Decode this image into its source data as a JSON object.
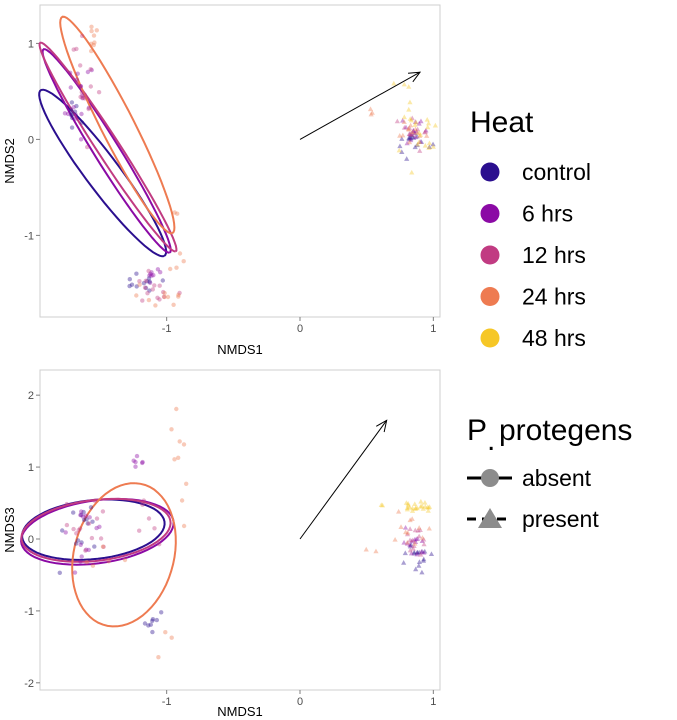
{
  "chart_data": [
    {
      "type": "scatter",
      "xlabel": "NMDS1",
      "ylabel": "NMDS2",
      "xlim": [
        -1.95,
        1.05
      ],
      "ylim": [
        -1.85,
        1.4
      ],
      "x_ticks": [
        "-1",
        "0",
        "1"
      ],
      "x_tick_values": [
        -1,
        0,
        1
      ],
      "y_ticks": [
        "-1",
        "0",
        "1"
      ],
      "y_tick_values": [
        -1,
        0,
        1
      ],
      "grid": false,
      "arrow": {
        "from": [
          0,
          0
        ],
        "to": [
          0.9,
          0.7
        ]
      },
      "ellipses": [
        {
          "group": "control",
          "cx": -1.48,
          "cy": -0.35,
          "rx": 0.98,
          "ry": 0.14,
          "angle_deg": -62
        },
        {
          "group": "6 hrs",
          "cx": -1.45,
          "cy": -0.12,
          "rx": 1.16,
          "ry": 0.1,
          "angle_deg": -66
        },
        {
          "group": "12 hrs",
          "cx": -1.44,
          "cy": -0.08,
          "rx": 1.2,
          "ry": 0.09,
          "angle_deg": -65
        },
        {
          "group": "24 hrs",
          "cx": -1.37,
          "cy": 0.15,
          "rx": 1.2,
          "ry": 0.13,
          "angle_deg": -70
        }
      ],
      "clusters": [
        {
          "group": "control",
          "shape": "circle",
          "cx": -1.72,
          "cy": 0.25,
          "sx": 0.03,
          "sy": 0.12,
          "n": 10
        },
        {
          "group": "6 hrs",
          "shape": "circle",
          "cx": -1.63,
          "cy": 0.5,
          "sx": 0.05,
          "sy": 0.25,
          "n": 18
        },
        {
          "group": "12 hrs",
          "shape": "circle",
          "cx": -1.62,
          "cy": 0.55,
          "sx": 0.06,
          "sy": 0.25,
          "n": 14
        },
        {
          "group": "24 hrs",
          "shape": "circle",
          "cx": -1.55,
          "cy": 1.05,
          "sx": 0.05,
          "sy": 0.1,
          "n": 8
        },
        {
          "group": "6 hrs",
          "shape": "circle",
          "cx": -1.12,
          "cy": -1.4,
          "sx": 0.03,
          "sy": 0.05,
          "n": 8
        },
        {
          "group": "control",
          "shape": "circle",
          "cx": -1.18,
          "cy": -1.5,
          "sx": 0.06,
          "sy": 0.06,
          "n": 12
        },
        {
          "group": "12 hrs",
          "shape": "circle",
          "cx": -1.1,
          "cy": -1.55,
          "sx": 0.1,
          "sy": 0.08,
          "n": 14
        },
        {
          "group": "24 hrs",
          "shape": "circle",
          "cx": -1.05,
          "cy": -1.6,
          "sx": 0.12,
          "sy": 0.07,
          "n": 10
        },
        {
          "group": "24 hrs",
          "shape": "circle",
          "cx": -0.92,
          "cy": -0.8,
          "sx": 0.03,
          "sy": 0.4,
          "n": 6
        },
        {
          "group": "control",
          "shape": "triangle",
          "cx": 0.86,
          "cy": 0.02,
          "sx": 0.05,
          "sy": 0.08,
          "n": 18
        },
        {
          "group": "6 hrs",
          "shape": "triangle",
          "cx": 0.87,
          "cy": 0.05,
          "sx": 0.05,
          "sy": 0.08,
          "n": 14
        },
        {
          "group": "12 hrs",
          "shape": "triangle",
          "cx": 0.86,
          "cy": 0.07,
          "sx": 0.06,
          "sy": 0.09,
          "n": 12
        },
        {
          "group": "24 hrs",
          "shape": "triangle",
          "cx": 0.85,
          "cy": 0.05,
          "sx": 0.07,
          "sy": 0.1,
          "n": 12
        },
        {
          "group": "48 hrs",
          "shape": "triangle",
          "cx": 0.88,
          "cy": 0.12,
          "sx": 0.07,
          "sy": 0.15,
          "n": 20
        },
        {
          "group": "48 hrs",
          "shape": "triangle",
          "cx": 0.75,
          "cy": 0.45,
          "sx": 0.12,
          "sy": 0.1,
          "n": 4
        },
        {
          "group": "24 hrs",
          "shape": "triangle",
          "cx": 0.55,
          "cy": 0.25,
          "sx": 0.04,
          "sy": 0.05,
          "n": 3
        }
      ]
    },
    {
      "type": "scatter",
      "xlabel": "NMDS1",
      "ylabel": "NMDS3",
      "xlim": [
        -1.95,
        1.05
      ],
      "ylim": [
        -2.1,
        2.35
      ],
      "x_ticks": [
        "-1",
        "0",
        "1"
      ],
      "x_tick_values": [
        -1,
        0,
        1
      ],
      "y_ticks": [
        "-2",
        "-1",
        "0",
        "1",
        "2"
      ],
      "y_tick_values": [
        -2,
        -1,
        0,
        1,
        2
      ],
      "grid": false,
      "arrow": {
        "from": [
          0,
          0
        ],
        "to": [
          0.65,
          1.65
        ]
      },
      "ellipses": [
        {
          "group": "control",
          "cx": -1.55,
          "cy": 0.13,
          "rx": 0.55,
          "ry": 0.4,
          "angle_deg": 20
        },
        {
          "group": "6 hrs",
          "cx": -1.52,
          "cy": 0.1,
          "rx": 0.6,
          "ry": 0.42,
          "angle_deg": 25
        },
        {
          "group": "12 hrs",
          "cx": -1.53,
          "cy": 0.12,
          "rx": 0.58,
          "ry": 0.41,
          "angle_deg": 22
        },
        {
          "group": "24 hrs",
          "cx": -1.32,
          "cy": -0.22,
          "rx": 1.0,
          "ry": 0.38,
          "angle_deg": 85
        }
      ],
      "clusters": [
        {
          "group": "control",
          "shape": "circle",
          "cx": -1.65,
          "cy": 0.1,
          "sx": 0.08,
          "sy": 0.2,
          "n": 14
        },
        {
          "group": "6 hrs",
          "shape": "circle",
          "cx": -1.62,
          "cy": 0.15,
          "sx": 0.08,
          "sy": 0.2,
          "n": 14
        },
        {
          "group": "12 hrs",
          "shape": "circle",
          "cx": -1.6,
          "cy": 0.12,
          "sx": 0.09,
          "sy": 0.22,
          "n": 14
        },
        {
          "group": "24 hrs",
          "shape": "circle",
          "cx": -1.45,
          "cy": -0.3,
          "sx": 0.1,
          "sy": 0.1,
          "n": 5
        },
        {
          "group": "6 hrs",
          "shape": "circle",
          "cx": -1.2,
          "cy": 1.07,
          "sx": 0.02,
          "sy": 0.04,
          "n": 6
        },
        {
          "group": "control",
          "shape": "circle",
          "cx": -1.1,
          "cy": -1.15,
          "sx": 0.05,
          "sy": 0.08,
          "n": 8
        },
        {
          "group": "12 hrs",
          "shape": "circle",
          "cx": -1.15,
          "cy": 0.3,
          "sx": 0.05,
          "sy": 0.25,
          "n": 6
        },
        {
          "group": "24 hrs",
          "shape": "circle",
          "cx": -0.9,
          "cy": 0.9,
          "sx": 0.04,
          "sy": 0.6,
          "n": 9
        },
        {
          "group": "24 hrs",
          "shape": "circle",
          "cx": -1.0,
          "cy": -1.5,
          "sx": 0.05,
          "sy": 0.15,
          "n": 3
        },
        {
          "group": "control",
          "shape": "triangle",
          "cx": 0.85,
          "cy": -0.25,
          "sx": 0.05,
          "sy": 0.1,
          "n": 18
        },
        {
          "group": "6 hrs",
          "shape": "triangle",
          "cx": 0.85,
          "cy": -0.1,
          "sx": 0.05,
          "sy": 0.12,
          "n": 14
        },
        {
          "group": "12 hrs",
          "shape": "triangle",
          "cx": 0.84,
          "cy": 0.0,
          "sx": 0.06,
          "sy": 0.13,
          "n": 14
        },
        {
          "group": "24 hrs",
          "shape": "triangle",
          "cx": 0.82,
          "cy": 0.1,
          "sx": 0.07,
          "sy": 0.12,
          "n": 12
        },
        {
          "group": "48 hrs",
          "shape": "triangle",
          "cx": 0.88,
          "cy": 0.45,
          "sx": 0.05,
          "sy": 0.03,
          "n": 22
        },
        {
          "group": "24 hrs",
          "shape": "triangle",
          "cx": 0.55,
          "cy": -0.15,
          "sx": 0.03,
          "sy": 0.05,
          "n": 2
        },
        {
          "group": "48 hrs",
          "shape": "triangle",
          "cx": 0.62,
          "cy": 0.48,
          "sx": 0.02,
          "sy": 0.02,
          "n": 2
        }
      ]
    }
  ],
  "legend": {
    "heat_title": "Heat",
    "heat_items": [
      {
        "label": "control",
        "color": "#2b0f8f"
      },
      {
        "label": "6 hrs",
        "color": "#8b0aa5"
      },
      {
        "label": "12 hrs",
        "color": "#c13b82"
      },
      {
        "label": "24 hrs",
        "color": "#ee7b51"
      },
      {
        "label": "48 hrs",
        "color": "#f6c726"
      }
    ],
    "protegens_title_main": "P",
    "protegens_title_dot": ".",
    "protegens_title_rest": "protegens",
    "protegens_items": [
      {
        "label": "absent",
        "shape": "circle",
        "line": "solid"
      },
      {
        "label": "present",
        "shape": "triangle",
        "line": "dashed"
      }
    ]
  }
}
